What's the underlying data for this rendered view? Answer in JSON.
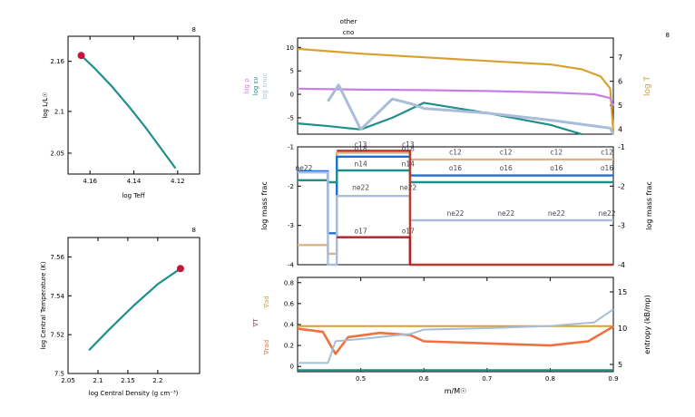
{
  "chart_data": [
    {
      "type": "line",
      "panel": "hr-diagram",
      "corner_label": "8",
      "xlabel": "log Teff",
      "ylabel": "log L/L☉",
      "xlim": [
        4.17,
        4.11
      ],
      "ylim": [
        2.025,
        2.19
      ],
      "xticks": [
        4.16,
        4.14,
        4.12
      ],
      "xtick_labels": [
        "4.16",
        "4.14",
        "4.12"
      ],
      "yticks": [
        2.05,
        2.1,
        2.16
      ],
      "ytick_labels": [
        "2.05",
        "2.1",
        "2.16"
      ],
      "series": [
        {
          "color": "#1f8f8a",
          "x": [
            4.164,
            4.158,
            4.15,
            4.142,
            4.135,
            4.128,
            4.121
          ],
          "y": [
            2.167,
            2.152,
            2.13,
            2.105,
            2.082,
            2.057,
            2.032
          ]
        }
      ],
      "marker": {
        "x": 4.164,
        "y": 2.167,
        "color": "#c8143c"
      }
    },
    {
      "type": "line",
      "panel": "central-conditions",
      "corner_label": "8",
      "xlabel": "log Central Density (g cm⁻³)",
      "ylabel": "log Central Temperature (K)",
      "xlim": [
        2.05,
        2.27
      ],
      "ylim": [
        7.5,
        7.57
      ],
      "xticks": [
        2.05,
        2.1,
        2.15,
        2.2
      ],
      "xtick_labels": [
        "2.05",
        "2.1",
        "2.15",
        "2.2"
      ],
      "yticks": [
        7.5,
        7.52,
        7.54,
        7.56
      ],
      "ytick_labels": [
        "7.5",
        "7.52",
        "7.54",
        "7.56"
      ],
      "series": [
        {
          "color": "#1f8f8a",
          "x": [
            2.085,
            2.12,
            2.16,
            2.2,
            2.238
          ],
          "y": [
            7.512,
            7.523,
            7.535,
            7.546,
            7.554
          ]
        }
      ],
      "marker": {
        "x": 2.238,
        "y": 7.554,
        "color": "#c8143c"
      }
    },
    {
      "type": "line",
      "panel": "profile-top",
      "corner_label": "8",
      "title": "other",
      "subtitle": "cno",
      "xlim": [
        0.4,
        0.9
      ],
      "ylim": [
        -8.5,
        12
      ],
      "yticks": [
        -5,
        0,
        5,
        10
      ],
      "ytick_labels": [
        "-5",
        "0",
        "5",
        "10"
      ],
      "y2lim": [
        3.8,
        7.8
      ],
      "y2ticks": [
        4,
        5,
        6,
        7
      ],
      "y2tick_labels": [
        "4",
        "5",
        "6",
        "7"
      ],
      "ylabels": [
        {
          "text": "log ρ",
          "color": "#c77fe8"
        },
        {
          "text": "log εν",
          "color": "#1f8f8a"
        },
        {
          "text": "log εnuc",
          "color": "#a9bdd8"
        }
      ],
      "y2label": {
        "text": "log T",
        "color": "#d9a030"
      },
      "series": [
        {
          "color": "#d9a030",
          "axis": "y2",
          "x": [
            0.4,
            0.5,
            0.6,
            0.7,
            0.8,
            0.85,
            0.88,
            0.895,
            0.9
          ],
          "y": [
            7.35,
            7.15,
            7.0,
            6.85,
            6.7,
            6.5,
            6.2,
            5.7,
            3.9
          ]
        },
        {
          "color": "#c77fe8",
          "axis": "y",
          "x": [
            0.4,
            0.5,
            0.6,
            0.7,
            0.8,
            0.87,
            0.895,
            0.9
          ],
          "y": [
            1.2,
            1.0,
            0.9,
            0.7,
            0.4,
            0.0,
            -0.8,
            -2.5
          ]
        },
        {
          "color": "#1f8f8a",
          "axis": "y",
          "x": [
            0.4,
            0.45,
            0.5,
            0.55,
            0.6,
            0.7,
            0.8,
            0.85
          ],
          "y": [
            -6.2,
            -6.8,
            -7.5,
            -5.0,
            -1.8,
            -4.0,
            -6.5,
            -8.5
          ]
        },
        {
          "color": "#a9bdd8",
          "axis": "y",
          "x": [
            0.448,
            0.465,
            0.5,
            0.55,
            0.58,
            0.6,
            0.7,
            0.8,
            0.895,
            0.9
          ],
          "y": [
            -1.5,
            2.0,
            -7.5,
            -1.0,
            -2.0,
            -3.0,
            -4.0,
            -5.5,
            -7.2,
            -8.5
          ]
        }
      ]
    },
    {
      "type": "line",
      "panel": "profile-middle",
      "ylabel": "log mass frac",
      "y2label": "log mass frac",
      "xlim": [
        0.4,
        0.9
      ],
      "ylim": [
        -4,
        -1
      ],
      "yticks": [
        -4,
        -3,
        -2,
        -1
      ],
      "ytick_labels": [
        "-4",
        "-3",
        "-2",
        "-1"
      ],
      "series": [
        {
          "name": "c12",
          "color": "#d9b48a",
          "level": -1.32
        },
        {
          "name": "o16",
          "color": "#1f6fd4",
          "level": -1.73
        },
        {
          "name": "n14",
          "color": "#1f8f8a",
          "level": -1.9
        },
        {
          "name": "ne22",
          "color": "#a9bdd8",
          "level": -2.87
        },
        {
          "name": "c13",
          "color": "#c0392b",
          "level": -1.1
        },
        {
          "name": "o17",
          "color": "#b22222",
          "level": -3.3
        }
      ],
      "annotations": [
        {
          "text": "ne22",
          "x": 0.41,
          "y": -1.6
        },
        {
          "text": "c13",
          "x": 0.5,
          "y": -1.0
        },
        {
          "text": "o18",
          "x": 0.5,
          "y": -1.1
        },
        {
          "text": "n14",
          "x": 0.5,
          "y": -1.5
        },
        {
          "text": "ne22",
          "x": 0.5,
          "y": -2.1
        },
        {
          "text": "o17",
          "x": 0.5,
          "y": -3.2
        },
        {
          "text": "c13",
          "x": 0.575,
          "y": -1.0
        },
        {
          "text": "o18",
          "x": 0.575,
          "y": -1.1
        },
        {
          "text": "n14",
          "x": 0.575,
          "y": -1.5
        },
        {
          "text": "ne22",
          "x": 0.575,
          "y": -2.1
        },
        {
          "text": "o17",
          "x": 0.575,
          "y": -3.2
        },
        {
          "text": "c12",
          "x": 0.65,
          "y": -1.2
        },
        {
          "text": "c12",
          "x": 0.73,
          "y": -1.2
        },
        {
          "text": "c12",
          "x": 0.81,
          "y": -1.2
        },
        {
          "text": "c12",
          "x": 0.89,
          "y": -1.2
        },
        {
          "text": "o16",
          "x": 0.65,
          "y": -1.6
        },
        {
          "text": "o16",
          "x": 0.73,
          "y": -1.6
        },
        {
          "text": "o16",
          "x": 0.81,
          "y": -1.6
        },
        {
          "text": "o16",
          "x": 0.89,
          "y": -1.6
        },
        {
          "text": "ne22",
          "x": 0.65,
          "y": -2.75
        },
        {
          "text": "ne22",
          "x": 0.73,
          "y": -2.75
        },
        {
          "text": "ne22",
          "x": 0.81,
          "y": -2.75
        },
        {
          "text": "ne22",
          "x": 0.89,
          "y": -2.75
        }
      ]
    },
    {
      "type": "line",
      "panel": "profile-bottom",
      "xlabel": "m/M☉",
      "xlim": [
        0.4,
        0.9
      ],
      "xticks": [
        0.5,
        0.6,
        0.7,
        0.8,
        0.9
      ],
      "xtick_labels": [
        "0.5",
        "0.6",
        "0.7",
        "0.8",
        "0.9"
      ],
      "ylim": [
        -0.05,
        0.85
      ],
      "yticks": [
        0,
        0.2,
        0.4,
        0.6,
        0.8
      ],
      "ytick_labels": [
        "0",
        "0.2",
        "0.4",
        "0.6",
        "0.8"
      ],
      "y2lim": [
        4,
        17
      ],
      "y2ticks": [
        5,
        10,
        15
      ],
      "y2tick_labels": [
        "5",
        "10",
        "15"
      ],
      "ylabels": [
        {
          "text": "∇ad",
          "color": "#d9a030"
        },
        {
          "text": "∇T",
          "color": "#c0392b"
        },
        {
          "text": "∇rad",
          "color": "#f07040"
        }
      ],
      "y2label": "entropy (kB/mp)",
      "series": [
        {
          "color": "#d9a030",
          "axis": "y",
          "x": [
            0.4,
            0.9
          ],
          "y": [
            0.385,
            0.385
          ]
        },
        {
          "color": "#f07040",
          "axis": "y",
          "x": [
            0.4,
            0.44,
            0.46,
            0.48,
            0.53,
            0.578,
            0.6,
            0.7,
            0.8,
            0.86,
            0.9
          ],
          "y": [
            0.36,
            0.33,
            0.12,
            0.28,
            0.32,
            0.3,
            0.24,
            0.22,
            0.2,
            0.24,
            0.38
          ]
        },
        {
          "color": "#a9bdd8",
          "axis": "y2",
          "x": [
            0.4,
            0.448,
            0.46,
            0.5,
            0.578,
            0.6,
            0.7,
            0.8,
            0.87,
            0.9
          ],
          "y": [
            5.2,
            5.2,
            8.2,
            8.5,
            9.2,
            9.8,
            10.0,
            10.3,
            10.8,
            12.6
          ]
        },
        {
          "color": "#1f8f8a",
          "axis": "y",
          "x": [
            0.4,
            0.9
          ],
          "y": [
            -0.035,
            -0.035
          ]
        }
      ]
    }
  ]
}
